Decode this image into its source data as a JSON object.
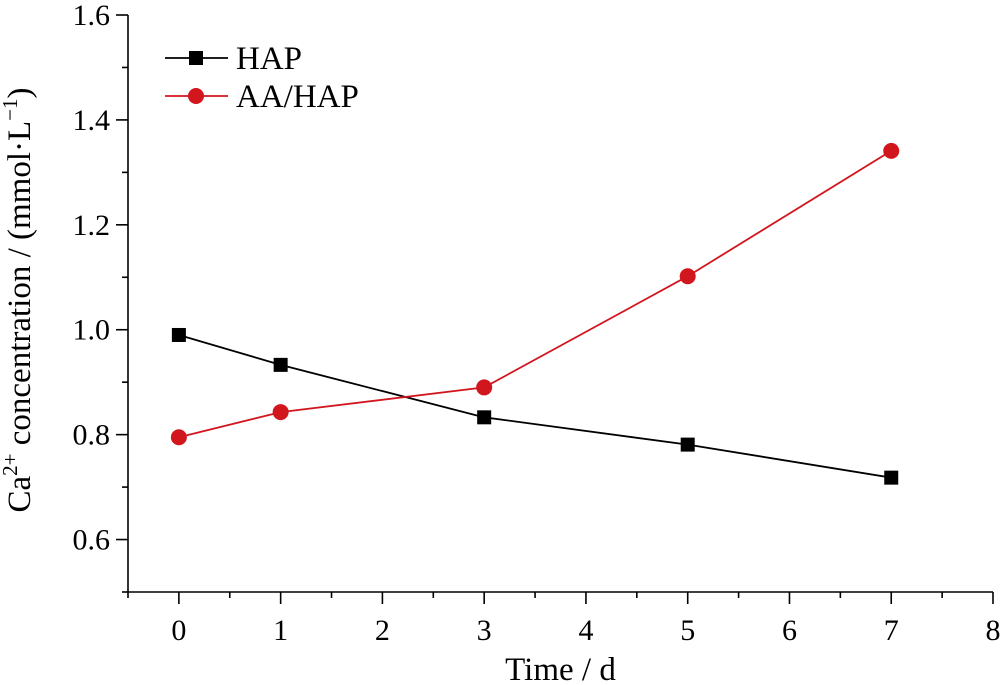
{
  "chart_data": {
    "type": "line",
    "title": "",
    "xlabel": "Time / d",
    "ylabel_parts": {
      "prefix": "Ca",
      "sup": "2+",
      "middle": " concentration / (mmol",
      "dot1": "·",
      "unit": "L",
      "sup2": "−1",
      "suffix": ")"
    },
    "xlim": [
      -0.5,
      8
    ],
    "ylim": [
      0.5,
      1.6
    ],
    "xticks": [
      0,
      1,
      2,
      3,
      4,
      5,
      6,
      7,
      8
    ],
    "yticks": [
      0.6,
      0.8,
      1.0,
      1.2,
      1.4,
      1.6
    ],
    "ytick_labels": [
      "0.6",
      "0.8",
      "1.0",
      "1.2",
      "1.4",
      "1.6"
    ],
    "xtick_labels": [
      "0",
      "1",
      "2",
      "3",
      "4",
      "5",
      "6",
      "7",
      "8"
    ],
    "legend_position": "top-left",
    "series": [
      {
        "name": "HAP",
        "color": "#000000",
        "marker": "square",
        "x": [
          0,
          1,
          3,
          5,
          7
        ],
        "values": [
          0.99,
          0.933,
          0.833,
          0.781,
          0.718
        ]
      },
      {
        "name": "AA/HAP",
        "color": "#d2161e",
        "marker": "circle",
        "x": [
          0,
          1,
          3,
          5,
          7
        ],
        "values": [
          0.795,
          0.843,
          0.89,
          1.102,
          1.341
        ]
      }
    ]
  }
}
